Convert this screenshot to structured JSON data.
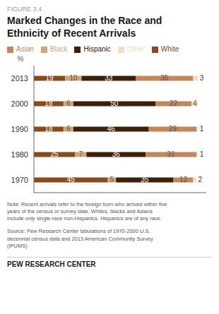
{
  "chart_data": {
    "type": "bar",
    "title": "Marked Changes in the Race and\nEthnicity of Recent Arrivals",
    "ylabel": "%",
    "orientation": "horizontal",
    "stacked": true,
    "data_labels": true,
    "grid": false,
    "legend": "top",
    "tick_labels": "y",
    "categories": [
      "2013",
      "2000",
      "1990",
      "1980",
      "1970"
    ],
    "series": [
      {
        "name": "White",
        "color": "#8B4A1A",
        "values": [
          19,
          18,
          18,
          25,
          45
        ]
      },
      {
        "name": "Black",
        "color": "#D4A574",
        "values": [
          10,
          6,
          6,
          7,
          5
        ]
      },
      {
        "name": "Hispanic",
        "color": "#3D2008",
        "values": [
          33,
          50,
          46,
          36,
          35
        ]
      },
      {
        "name": "Asian",
        "color": "#C8855A",
        "values": [
          35,
          22,
          29,
          31,
          12
        ]
      },
      {
        "name": "Other",
        "color": "#F0DFC0",
        "values": [
          3,
          4,
          1,
          1,
          2
        ]
      }
    ],
    "xlim": [
      0,
      105
    ],
    "annotations": {
      "figure_label": "FIGURE 3.4",
      "note": "Note: Recent arrivals refer to the foreign born who arrived within five\nyears of the census or survey date. Whites, blacks and Asians\ninclude only single-race non-Hispanics. Hispanics are of any race.",
      "source": "Source: Pew Research Center tabulations of 1970-2000 U.S.\ndecennial census data and 2013 American Community Survey\n(IPUMS)",
      "footer": "PEW RESEARCH CENTER"
    }
  }
}
